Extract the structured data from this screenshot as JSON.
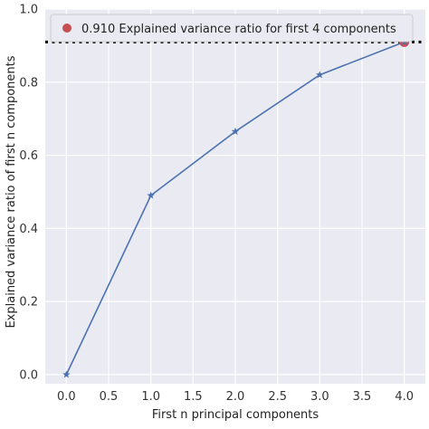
{
  "chart_data": {
    "type": "line",
    "xlabel": "First n principal components",
    "ylabel": "Explained variance ratio of first n components",
    "xlim": [
      -0.25,
      4.25
    ],
    "ylim": [
      -0.025,
      1.0
    ],
    "x_ticks": [
      "0.0",
      "0.5",
      "1.0",
      "1.5",
      "2.0",
      "2.5",
      "3.0",
      "3.5",
      "4.0"
    ],
    "y_ticks": [
      "0.0",
      "0.2",
      "0.4",
      "0.6",
      "0.8",
      "1.0"
    ],
    "grid": true,
    "series": [
      {
        "x": [
          0,
          1,
          2,
          3,
          4
        ],
        "y": [
          0.0,
          0.49,
          0.665,
          0.82,
          0.91
        ],
        "marker": "star"
      }
    ],
    "threshold_line": {
      "y": 0.91,
      "style": "dotted"
    },
    "highlight_point": {
      "x": 4,
      "y": 0.91
    },
    "legend": {
      "label": "0.910 Explained variance ratio for first 4 components",
      "position": "top"
    },
    "colors": {
      "background": "#eaeaf2",
      "line": "#4c72b0",
      "marker": "#c44e52",
      "threshold": "#000000",
      "grid": "#ffffff"
    }
  }
}
